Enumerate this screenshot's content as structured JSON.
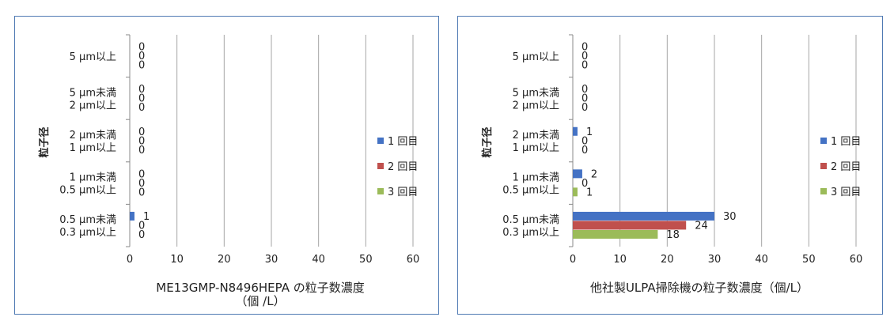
{
  "chart_data": [
    {
      "type": "bar",
      "orientation": "horizontal",
      "title": "ME13GMP-N8496HEPA の粒子数濃度\n（個 /L）",
      "ylabel": "粒子径",
      "categories": [
        "5 μm以上",
        "5 μm未満\n2 μm以上",
        "2 μm未満\n1 μm以上",
        "1 μm未満\n0.5 μm以上",
        "0.5 μm未満\n0.3 μm以上"
      ],
      "xlim": [
        0,
        60
      ],
      "xticks": [
        0,
        10,
        20,
        30,
        40,
        50,
        60
      ],
      "grid": true,
      "legend_position": "right",
      "series": [
        {
          "name": "1 回目",
          "color": "#4472c4",
          "values": [
            0,
            0,
            0,
            0,
            1
          ]
        },
        {
          "name": "2 回目",
          "color": "#c0504d",
          "values": [
            0,
            0,
            0,
            0,
            0
          ]
        },
        {
          "name": "3 回目",
          "color": "#9bbb59",
          "values": [
            0,
            0,
            0,
            0,
            0
          ]
        }
      ]
    },
    {
      "type": "bar",
      "orientation": "horizontal",
      "title": "他社製ULPA掃除機の粒子数濃度（個/L）",
      "ylabel": "粒子径",
      "categories": [
        "5 μm以上",
        "5 μm未満\n2 μm以上",
        "2 μm未満\n1 μm以上",
        "1 μm未満\n0.5 μm以上",
        "0.5 μm未満\n0.3 μm以上"
      ],
      "xlim": [
        0,
        60
      ],
      "xticks": [
        0,
        10,
        20,
        30,
        40,
        50,
        60
      ],
      "grid": true,
      "legend_position": "right",
      "series": [
        {
          "name": "1 回目",
          "color": "#4472c4",
          "values": [
            0,
            0,
            1,
            2,
            30
          ]
        },
        {
          "name": "2 回目",
          "color": "#c0504d",
          "values": [
            0,
            0,
            0,
            0,
            24
          ]
        },
        {
          "name": "3 回目",
          "color": "#9bbb59",
          "values": [
            0,
            0,
            0,
            1,
            18
          ]
        }
      ]
    }
  ]
}
